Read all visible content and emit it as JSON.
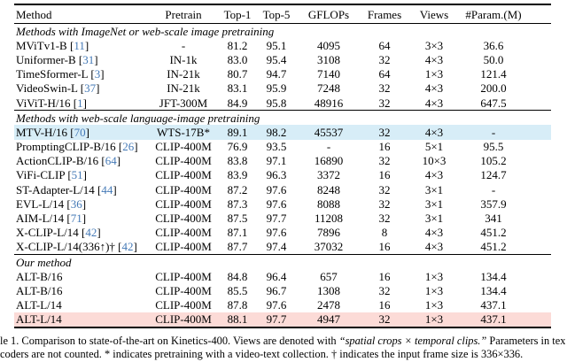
{
  "colors": {
    "cite_blue": "#4479b6",
    "highlight_blue": "#d7edf7",
    "highlight_pink": "#fcdbd7"
  },
  "table": {
    "columns": [
      "Method",
      "Pretrain",
      "Top-1",
      "Top-5",
      "GFLOPs",
      "Frames",
      "Views",
      "#Param.(M)"
    ],
    "sections": [
      {
        "header": "Methods with ImageNet or web-scale image pretraining",
        "rows": [
          {
            "method": "MViTv1-B",
            "cite": "11",
            "pretrain": "-",
            "top1": "81.2",
            "top5": "95.1",
            "gflops": "4095",
            "frames": "64",
            "views": "3×3",
            "params": "36.6",
            "highlight": null
          },
          {
            "method": "Uniformer-B",
            "cite": "31",
            "pretrain": "IN-1k",
            "top1": "83.0",
            "top5": "95.4",
            "gflops": "3108",
            "frames": "32",
            "views": "4×3",
            "params": "50.0",
            "highlight": null
          },
          {
            "method": "TimeSformer-L",
            "cite": "3",
            "pretrain": "IN-21k",
            "top1": "80.7",
            "top5": "94.7",
            "gflops": "7140",
            "frames": "64",
            "views": "1×3",
            "params": "121.4",
            "highlight": null
          },
          {
            "method": "VideoSwin-L",
            "cite": "37",
            "pretrain": "IN-21k",
            "top1": "83.1",
            "top5": "95.9",
            "gflops": "7248",
            "frames": "32",
            "views": "4×3",
            "params": "200.0",
            "highlight": null
          },
          {
            "method": "ViViT-H/16",
            "cite": "1",
            "pretrain": "JFT-300M",
            "top1": "84.9",
            "top5": "95.8",
            "gflops": "48916",
            "frames": "32",
            "views": "4×3",
            "params": "647.5",
            "highlight": null
          }
        ]
      },
      {
        "header": "Methods with web-scale language-image pretraining",
        "rows": [
          {
            "method": "MTV-H/16",
            "cite": "70",
            "pretrain": "WTS-17B*",
            "top1": "89.1",
            "top5": "98.2",
            "gflops": "45537",
            "frames": "32",
            "views": "4×3",
            "params": "-",
            "highlight": "blue"
          },
          {
            "method": "PromptingCLIP-B/16",
            "cite": "26",
            "pretrain": "CLIP-400M",
            "top1": "76.9",
            "top5": "93.5",
            "gflops": "-",
            "frames": "16",
            "views": "5×1",
            "params": "95.5",
            "highlight": null
          },
          {
            "method": "ActionCLIP-B/16",
            "cite": "64",
            "pretrain": "CLIP-400M",
            "top1": "83.8",
            "top5": "97.1",
            "gflops": "16890",
            "frames": "32",
            "views": "10×3",
            "params": "105.2",
            "highlight": null
          },
          {
            "method": "ViFi-CLIP",
            "cite": "51",
            "pretrain": "CLIP-400M",
            "top1": "83.9",
            "top5": "96.3",
            "gflops": "3372",
            "frames": "16",
            "views": "4×3",
            "params": "124.7",
            "highlight": null
          },
          {
            "method": "ST-Adapter-L/14",
            "cite": "44",
            "pretrain": "CLIP-400M",
            "top1": "87.2",
            "top5": "97.6",
            "gflops": "8248",
            "frames": "32",
            "views": "3×1",
            "params": "-",
            "highlight": null
          },
          {
            "method": "EVL-L/14",
            "cite": "36",
            "pretrain": "CLIP-400M",
            "top1": "87.3",
            "top5": "97.6",
            "gflops": "8088",
            "frames": "32",
            "views": "3×1",
            "params": "357.9",
            "highlight": null
          },
          {
            "method": "AIM-L/14",
            "cite": "71",
            "pretrain": "CLIP-400M",
            "top1": "87.5",
            "top5": "97.7",
            "gflops": "11208",
            "frames": "32",
            "views": "3×1",
            "params": "341",
            "highlight": null
          },
          {
            "method": "X-CLIP-L/14",
            "cite": "42",
            "pretrain": "CLIP-400M",
            "top1": "87.1",
            "top5": "97.6",
            "gflops": "7896",
            "frames": "8",
            "views": "4×3",
            "params": "451.2",
            "highlight": null
          },
          {
            "method": "X-CLIP-L/14(336↑)†",
            "cite": "42",
            "pretrain": "CLIP-400M",
            "top1": "87.7",
            "top5": "97.4",
            "gflops": "37032",
            "frames": "16",
            "views": "4×3",
            "params": "451.2",
            "highlight": null
          }
        ]
      },
      {
        "header": "Our method",
        "rows": [
          {
            "method": "ALT-B/16",
            "cite": null,
            "pretrain": "CLIP-400M",
            "top1": "84.8",
            "top5": "96.4",
            "gflops": "657",
            "frames": "16",
            "views": "1×3",
            "params": "134.4",
            "highlight": null
          },
          {
            "method": "ALT-B/16",
            "cite": null,
            "pretrain": "CLIP-400M",
            "top1": "85.5",
            "top5": "96.7",
            "gflops": "1308",
            "frames": "32",
            "views": "1×3",
            "params": "134.4",
            "highlight": null
          },
          {
            "method": "ALT-L/14",
            "cite": null,
            "pretrain": "CLIP-400M",
            "top1": "87.8",
            "top5": "97.6",
            "gflops": "2478",
            "frames": "16",
            "views": "1×3",
            "params": "437.1",
            "highlight": null
          },
          {
            "method": "ALT-L/14",
            "cite": null,
            "pretrain": "CLIP-400M",
            "top1": "88.1",
            "top5": "97.7",
            "gflops": "4947",
            "frames": "32",
            "views": "1×3",
            "params": "437.1",
            "highlight": "pink"
          }
        ]
      }
    ]
  },
  "caption": {
    "line1_pre": "le 1.  Comparison to state-of-the-art on Kinetics-400.  Views are denoted with ",
    "line1_italic": "“spatial crops × temporal clips.”",
    "line1_post": "  Parameters in text",
    "line2": "coders are not counted. * indicates pretraining with a video-text collection. † indicates the input frame size is 336×336."
  }
}
